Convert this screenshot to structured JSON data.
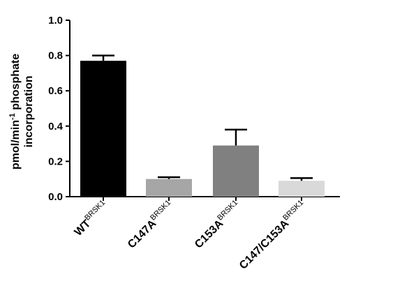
{
  "chart_data": {
    "type": "bar",
    "ylabel_line1": "pmol/min",
    "ylabel_sup": "-1",
    "ylabel_line1_rest": " phosphate",
    "ylabel_line2": "incorporation",
    "ylim": [
      0,
      1.0
    ],
    "yticks": [
      "0.0",
      "0.2",
      "0.4",
      "0.6",
      "0.8",
      "1.0"
    ],
    "ytick_values": [
      0,
      0.2,
      0.4,
      0.6,
      0.8,
      1.0
    ],
    "categories": [
      {
        "main": "WT",
        "sup": "BRSK1"
      },
      {
        "main": "C147A",
        "sup": "BRSK1"
      },
      {
        "main": "C153A",
        "sup": "BRSK1"
      },
      {
        "main": "C147/C153A",
        "sup": "BRSK1"
      }
    ],
    "values": [
      0.77,
      0.1,
      0.29,
      0.09
    ],
    "errors": [
      0.03,
      0.01,
      0.09,
      0.015
    ],
    "colors": [
      "#000000",
      "#a6a6a6",
      "#808080",
      "#d9d9d9"
    ],
    "grid": false,
    "legend": "none"
  }
}
